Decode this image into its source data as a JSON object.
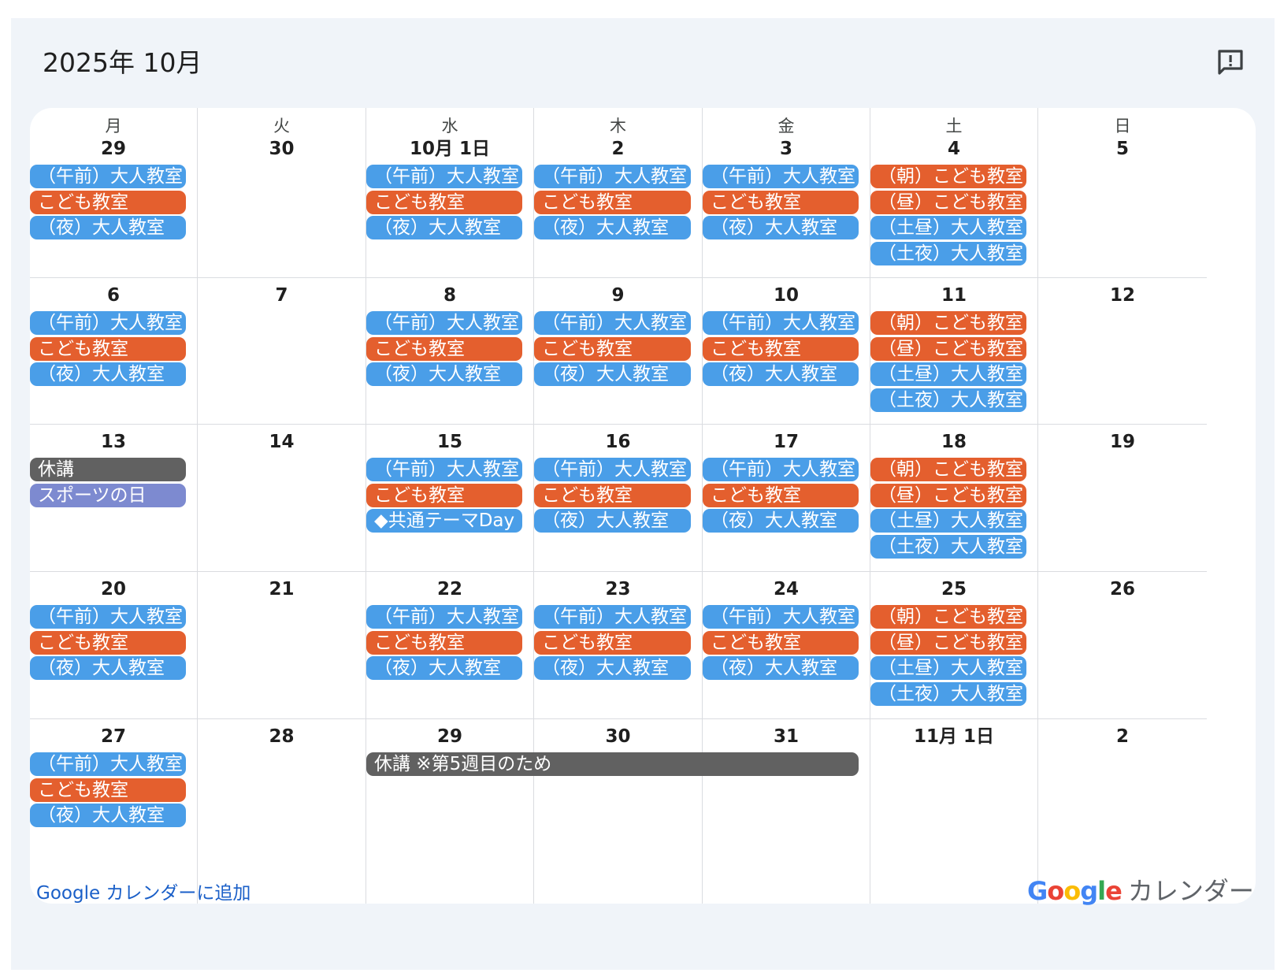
{
  "header": {
    "title": "2025年 10月",
    "feedback_icon": "feedback-icon"
  },
  "weekdays": [
    "月",
    "火",
    "水",
    "木",
    "金",
    "土",
    "日"
  ],
  "colors": {
    "blue": "#4a9ee8",
    "orange": "#e45f2e",
    "gray": "#616161",
    "purple": "#7d8ad0",
    "link": "#1a5fc8"
  },
  "weeks": [
    {
      "dates": [
        "29",
        "30",
        "10月 1日",
        "2",
        "3",
        "4",
        "5"
      ],
      "events": [
        {
          "col": 0,
          "slot": 0,
          "text": "（午前）大人教室",
          "color": "blue"
        },
        {
          "col": 0,
          "slot": 1,
          "text": "こども教室",
          "color": "orange"
        },
        {
          "col": 0,
          "slot": 2,
          "text": "（夜）大人教室",
          "color": "blue"
        },
        {
          "col": 2,
          "slot": 0,
          "text": "（午前）大人教室",
          "color": "blue"
        },
        {
          "col": 2,
          "slot": 1,
          "text": "こども教室",
          "color": "orange"
        },
        {
          "col": 2,
          "slot": 2,
          "text": "（夜）大人教室",
          "color": "blue"
        },
        {
          "col": 3,
          "slot": 0,
          "text": "（午前）大人教室",
          "color": "blue"
        },
        {
          "col": 3,
          "slot": 1,
          "text": "こども教室",
          "color": "orange"
        },
        {
          "col": 3,
          "slot": 2,
          "text": "（夜）大人教室",
          "color": "blue"
        },
        {
          "col": 4,
          "slot": 0,
          "text": "（午前）大人教室",
          "color": "blue"
        },
        {
          "col": 4,
          "slot": 1,
          "text": "こども教室",
          "color": "orange"
        },
        {
          "col": 4,
          "slot": 2,
          "text": "（夜）大人教室",
          "color": "blue"
        },
        {
          "col": 5,
          "slot": 0,
          "text": "（朝）こども教室",
          "color": "orange"
        },
        {
          "col": 5,
          "slot": 1,
          "text": "（昼）こども教室",
          "color": "orange"
        },
        {
          "col": 5,
          "slot": 2,
          "text": "（土昼）大人教室",
          "color": "blue"
        },
        {
          "col": 5,
          "slot": 3,
          "text": "（土夜）大人教室",
          "color": "blue"
        }
      ]
    },
    {
      "dates": [
        "6",
        "7",
        "8",
        "9",
        "10",
        "11",
        "12"
      ],
      "events": [
        {
          "col": 0,
          "slot": 0,
          "text": "（午前）大人教室",
          "color": "blue"
        },
        {
          "col": 0,
          "slot": 1,
          "text": "こども教室",
          "color": "orange"
        },
        {
          "col": 0,
          "slot": 2,
          "text": "（夜）大人教室",
          "color": "blue"
        },
        {
          "col": 2,
          "slot": 0,
          "text": "（午前）大人教室",
          "color": "blue"
        },
        {
          "col": 2,
          "slot": 1,
          "text": "こども教室",
          "color": "orange"
        },
        {
          "col": 2,
          "slot": 2,
          "text": "（夜）大人教室",
          "color": "blue"
        },
        {
          "col": 3,
          "slot": 0,
          "text": "（午前）大人教室",
          "color": "blue"
        },
        {
          "col": 3,
          "slot": 1,
          "text": "こども教室",
          "color": "orange"
        },
        {
          "col": 3,
          "slot": 2,
          "text": "（夜）大人教室",
          "color": "blue"
        },
        {
          "col": 4,
          "slot": 0,
          "text": "（午前）大人教室",
          "color": "blue"
        },
        {
          "col": 4,
          "slot": 1,
          "text": "こども教室",
          "color": "orange"
        },
        {
          "col": 4,
          "slot": 2,
          "text": "（夜）大人教室",
          "color": "blue"
        },
        {
          "col": 5,
          "slot": 0,
          "text": "（朝）こども教室",
          "color": "orange"
        },
        {
          "col": 5,
          "slot": 1,
          "text": "（昼）こども教室",
          "color": "orange"
        },
        {
          "col": 5,
          "slot": 2,
          "text": "（土昼）大人教室",
          "color": "blue"
        },
        {
          "col": 5,
          "slot": 3,
          "text": "（土夜）大人教室",
          "color": "blue"
        }
      ]
    },
    {
      "dates": [
        "13",
        "14",
        "15",
        "16",
        "17",
        "18",
        "19"
      ],
      "events": [
        {
          "col": 0,
          "slot": 0,
          "text": "休講",
          "color": "gray"
        },
        {
          "col": 0,
          "slot": 1,
          "text": "スポーツの日",
          "color": "purple"
        },
        {
          "col": 2,
          "slot": 0,
          "text": "（午前）大人教室",
          "color": "blue"
        },
        {
          "col": 2,
          "slot": 1,
          "text": "こども教室",
          "color": "orange"
        },
        {
          "col": 2,
          "slot": 2,
          "text": "◆共通テーマDay",
          "color": "blue"
        },
        {
          "col": 3,
          "slot": 0,
          "text": "（午前）大人教室",
          "color": "blue"
        },
        {
          "col": 3,
          "slot": 1,
          "text": "こども教室",
          "color": "orange"
        },
        {
          "col": 3,
          "slot": 2,
          "text": "（夜）大人教室",
          "color": "blue"
        },
        {
          "col": 4,
          "slot": 0,
          "text": "（午前）大人教室",
          "color": "blue"
        },
        {
          "col": 4,
          "slot": 1,
          "text": "こども教室",
          "color": "orange"
        },
        {
          "col": 4,
          "slot": 2,
          "text": "（夜）大人教室",
          "color": "blue"
        },
        {
          "col": 5,
          "slot": 0,
          "text": "（朝）こども教室",
          "color": "orange"
        },
        {
          "col": 5,
          "slot": 1,
          "text": "（昼）こども教室",
          "color": "orange"
        },
        {
          "col": 5,
          "slot": 2,
          "text": "（土昼）大人教室",
          "color": "blue"
        },
        {
          "col": 5,
          "slot": 3,
          "text": "（土夜）大人教室",
          "color": "blue"
        }
      ]
    },
    {
      "dates": [
        "20",
        "21",
        "22",
        "23",
        "24",
        "25",
        "26"
      ],
      "events": [
        {
          "col": 0,
          "slot": 0,
          "text": "（午前）大人教室",
          "color": "blue"
        },
        {
          "col": 0,
          "slot": 1,
          "text": "こども教室",
          "color": "orange"
        },
        {
          "col": 0,
          "slot": 2,
          "text": "（夜）大人教室",
          "color": "blue"
        },
        {
          "col": 2,
          "slot": 0,
          "text": "（午前）大人教室",
          "color": "blue"
        },
        {
          "col": 2,
          "slot": 1,
          "text": "こども教室",
          "color": "orange"
        },
        {
          "col": 2,
          "slot": 2,
          "text": "（夜）大人教室",
          "color": "blue"
        },
        {
          "col": 3,
          "slot": 0,
          "text": "（午前）大人教室",
          "color": "blue"
        },
        {
          "col": 3,
          "slot": 1,
          "text": "こども教室",
          "color": "orange"
        },
        {
          "col": 3,
          "slot": 2,
          "text": "（夜）大人教室",
          "color": "blue"
        },
        {
          "col": 4,
          "slot": 0,
          "text": "（午前）大人教室",
          "color": "blue"
        },
        {
          "col": 4,
          "slot": 1,
          "text": "こども教室",
          "color": "orange"
        },
        {
          "col": 4,
          "slot": 2,
          "text": "（夜）大人教室",
          "color": "blue"
        },
        {
          "col": 5,
          "slot": 0,
          "text": "（朝）こども教室",
          "color": "orange"
        },
        {
          "col": 5,
          "slot": 1,
          "text": "（昼）こども教室",
          "color": "orange"
        },
        {
          "col": 5,
          "slot": 2,
          "text": "（土昼）大人教室",
          "color": "blue"
        },
        {
          "col": 5,
          "slot": 3,
          "text": "（土夜）大人教室",
          "color": "blue"
        }
      ]
    },
    {
      "dates": [
        "27",
        "28",
        "29",
        "30",
        "31",
        "11月 1日",
        "2"
      ],
      "events": [
        {
          "col": 0,
          "slot": 0,
          "text": "（午前）大人教室",
          "color": "blue"
        },
        {
          "col": 0,
          "slot": 1,
          "text": "こども教室",
          "color": "orange"
        },
        {
          "col": 0,
          "slot": 2,
          "text": "（夜）大人教室",
          "color": "blue"
        },
        {
          "col": 2,
          "span": 3,
          "slot": 0,
          "text": "休講 ※第5週目のため",
          "color": "gray"
        }
      ]
    }
  ],
  "footer": {
    "add_link": "Google カレンダーに追加",
    "brand_google": "Google",
    "brand_calendar": "カレンダー"
  }
}
